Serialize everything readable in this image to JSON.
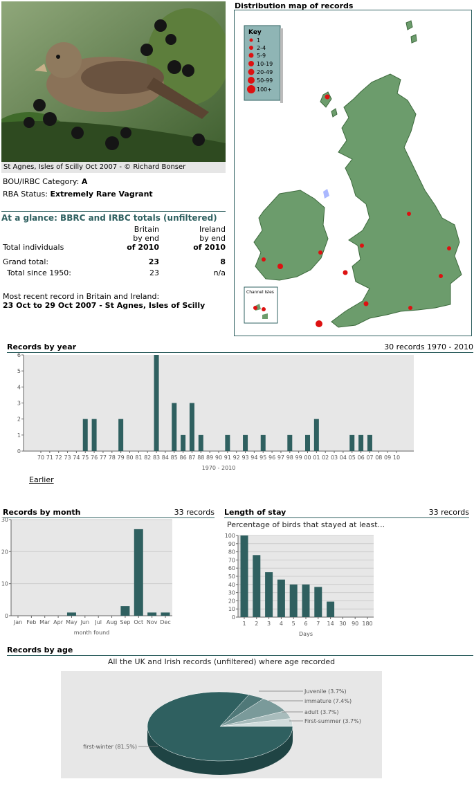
{
  "photo": {
    "caption": "St Agnes, Isles of Scilly Oct 2007 - © Richard Bonser"
  },
  "info": {
    "bou_label": "BOU/IRBC Category:",
    "bou_value": "A",
    "rba_label": "RBA Status:",
    "rba_value": "Extremely Rare Vagrant"
  },
  "glance": {
    "title": "At a glance: BBRC and IRBC totals (unfiltered)",
    "col1": [
      "Britain",
      "by end",
      "of 2010"
    ],
    "col2": [
      "Ireland",
      "by end",
      "of 2010"
    ],
    "row_total_individuals": "Total individuals",
    "row_grand_total": "Grand total:",
    "grand_britain": "23",
    "grand_ireland": "8",
    "row_since": "Total since 1950:",
    "since_britain": "23",
    "since_ireland": "n/a",
    "recent_label": "Most recent record in Britain and Ireland:",
    "recent_value": "23 Oct to 29 Oct 2007 - St Agnes, Isles of Scilly"
  },
  "map": {
    "title": "Distribution map of records",
    "key_title": "Key",
    "key_items": [
      "1",
      "2-4",
      "5-9",
      "10-19",
      "20-49",
      "50-99",
      "100+"
    ],
    "inset_label": "Channel Isles"
  },
  "year_chart": {
    "title": "Records by year",
    "summary": "30 records 1970 - 2010",
    "xlabel": "1970 - 2010",
    "earlier_link": "Earlier"
  },
  "month_chart": {
    "title": "Records by month",
    "summary": "33 records",
    "xlabel": "month found"
  },
  "stay_chart": {
    "title": "Length of stay",
    "summary": "33 records",
    "subtitle": "Percentage of birds that stayed at least...",
    "xlabel": "Days"
  },
  "age_chart": {
    "title": "Records by age",
    "subtitle": "All the UK and Irish records (unfiltered) where age recorded"
  },
  "colors": {
    "bar": "#2f6060",
    "accent": "#2f6060",
    "land": "#6c9c6c",
    "sea": "#ffffff",
    "dot": "#dd1111"
  },
  "chart_data": [
    {
      "type": "bar",
      "title": "Records by year",
      "categories": [
        "70",
        "71",
        "72",
        "73",
        "74",
        "75",
        "76",
        "77",
        "78",
        "79",
        "80",
        "81",
        "82",
        "83",
        "84",
        "85",
        "86",
        "87",
        "88",
        "89",
        "90",
        "91",
        "92",
        "93",
        "94",
        "95",
        "96",
        "97",
        "98",
        "99",
        "00",
        "01",
        "02",
        "03",
        "04",
        "05",
        "06",
        "07",
        "08",
        "09",
        "10"
      ],
      "values": [
        0,
        0,
        0,
        0,
        0,
        2,
        2,
        0,
        0,
        2,
        0,
        0,
        0,
        6,
        0,
        3,
        1,
        3,
        1,
        0,
        0,
        1,
        0,
        1,
        0,
        1,
        0,
        0,
        1,
        0,
        1,
        2,
        0,
        0,
        0,
        1,
        1,
        1,
        0,
        0,
        0
      ],
      "ylim": [
        0,
        6
      ],
      "yticks": [
        0,
        1,
        2,
        3,
        4,
        5,
        6
      ],
      "xlabel": "1970 - 2010",
      "grid": false
    },
    {
      "type": "bar",
      "title": "Records by month",
      "categories": [
        "Jan",
        "Feb",
        "Mar",
        "Apr",
        "May",
        "Jun",
        "Jul",
        "Aug",
        "Sep",
        "Oct",
        "Nov",
        "Dec"
      ],
      "values": [
        0,
        0,
        0,
        0,
        1,
        0,
        0,
        0,
        3,
        27,
        1,
        1
      ],
      "ylim": [
        0,
        30
      ],
      "yticks": [
        0,
        10,
        20,
        30
      ],
      "xlabel": "month found",
      "grid": true
    },
    {
      "type": "bar",
      "title": "Length of stay",
      "categories": [
        "1",
        "2",
        "3",
        "4",
        "5",
        "6",
        "7",
        "14",
        "30",
        "90",
        "180"
      ],
      "values": [
        100,
        76,
        55,
        46,
        40,
        40,
        37,
        19,
        0,
        0,
        0
      ],
      "ylim": [
        0,
        100
      ],
      "yticks": [
        0,
        10,
        20,
        30,
        40,
        50,
        60,
        70,
        80,
        90,
        100
      ],
      "xlabel": "Days",
      "ylabel": "",
      "grid": true
    },
    {
      "type": "pie",
      "title": "Records by age",
      "labels": [
        "first-winter (81.5%)",
        "Juvenile (3.7%)",
        "immature (7.4%)",
        "adult (3.7%)",
        "First-summer (3.7%)"
      ],
      "values": [
        81.5,
        3.7,
        7.4,
        3.7,
        3.7
      ]
    }
  ]
}
